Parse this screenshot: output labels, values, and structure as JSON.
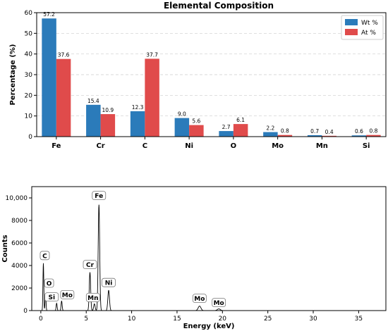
{
  "colors": {
    "wt": "#2b7bba",
    "at": "#e04b4b"
  },
  "chart_data": [
    {
      "type": "bar",
      "title": "Elemental Composition",
      "xlabel": "",
      "ylabel": "Percentage (%)",
      "categories": [
        "Fe",
        "Cr",
        "C",
        "Ni",
        "O",
        "Mo",
        "Mn",
        "Si"
      ],
      "series": [
        {
          "name": "Wt %",
          "values": [
            57.2,
            15.4,
            12.3,
            9.0,
            2.7,
            2.2,
            0.7,
            0.6
          ],
          "labels": [
            "57.2",
            "15.4",
            "12.3",
            "9.0",
            "2.7",
            "2.2",
            "0.7",
            "0.6"
          ]
        },
        {
          "name": "At %",
          "values": [
            37.6,
            10.9,
            37.7,
            5.6,
            6.1,
            0.8,
            0.4,
            0.8
          ],
          "labels": [
            "37.6",
            "10.9",
            "37.7",
            "5.6",
            "6.1",
            "0.8",
            "0.4",
            "0.8"
          ]
        }
      ],
      "ylim": [
        0,
        60
      ],
      "yticks": [
        "0",
        "10",
        "20",
        "30",
        "40",
        "50",
        "60"
      ],
      "grid": "horizontal dashed",
      "legend": "top-right"
    },
    {
      "type": "line",
      "title": "",
      "xlabel": "Energy (keV)",
      "ylabel": "Counts",
      "xlim": [
        -1,
        38
      ],
      "ylim": [
        0,
        11000
      ],
      "xticks": [
        "0",
        "5",
        "10",
        "15",
        "20",
        "25",
        "30",
        "35"
      ],
      "yticks": [
        "0",
        "2000",
        "4000",
        "6000",
        "8000",
        "10,000"
      ],
      "peaks": [
        {
          "label": "C",
          "x": 0.28,
          "y": 4200
        },
        {
          "label": "O",
          "x": 0.52,
          "y": 1500
        },
        {
          "label": "Si",
          "x": 1.74,
          "y": 650
        },
        {
          "label": "Mo",
          "x": 2.29,
          "y": 850
        },
        {
          "label": "Cr",
          "x": 5.41,
          "y": 3400
        },
        {
          "label": "Mn",
          "x": 5.9,
          "y": 600
        },
        {
          "label": "Fe",
          "x": 6.4,
          "y": 9400
        },
        {
          "label": "Ni",
          "x": 7.47,
          "y": 1800
        },
        {
          "label": "Mo",
          "x": 17.48,
          "y": 400
        },
        {
          "label": "Mo",
          "x": 19.6,
          "y": 150
        }
      ]
    }
  ]
}
